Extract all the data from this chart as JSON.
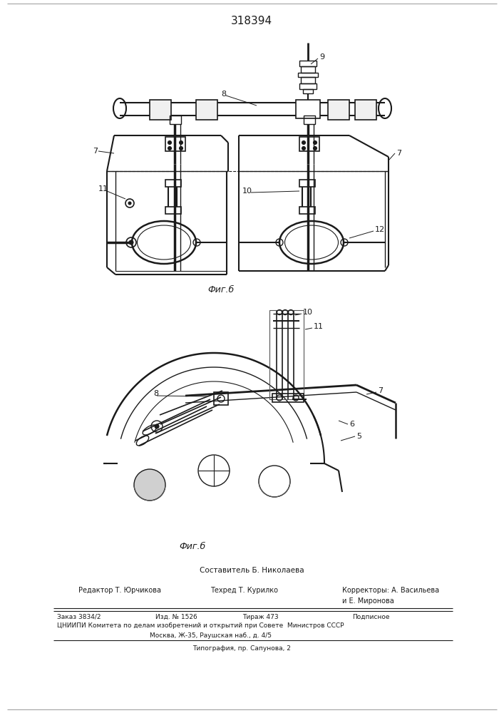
{
  "patent_number": "318394",
  "fig5_label": "Фиг.б",
  "fig6_label": "Фиг.б",
  "sestavitel": "Составитель Б. Николаева",
  "editor_line": "Редактор Т. Юрчикова",
  "techred_line": "Техред Т. Курилко",
  "correctors_line": "Корректоры: А. Васильева",
  "correctors_line2": "и Е. Миронова",
  "order_line": "Заказ 3834/2",
  "izd_line": "Изд. № 1526",
  "tirazh_line": "Тираж 473",
  "podpisnoe": "Подписное",
  "cniip_line": "ЦНИИПИ Комитета по делам изобретений и открытий при Совете  Министров СССР",
  "address_line": "Москва, Ж-35, Раушская наб., д. 4/5",
  "print_line": "Типография, пр. Сапунова, 2",
  "bg_color": "#ffffff",
  "line_color": "#1a1a1a",
  "text_color": "#1a1a1a"
}
